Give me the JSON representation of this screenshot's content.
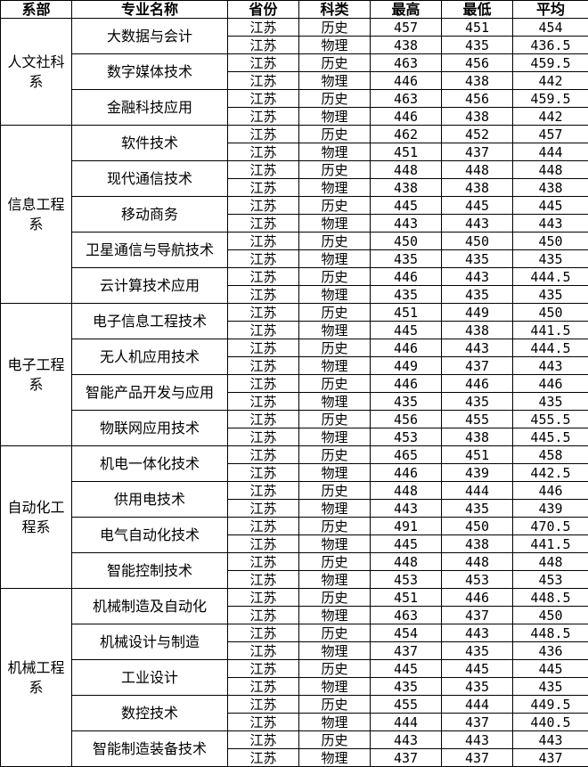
{
  "headers": [
    "系部",
    "专业名称",
    "省份",
    "科类",
    "最高",
    "最低",
    "平均"
  ],
  "departments": [
    {
      "name": "人文社科系",
      "majors": [
        {
          "name": "大数据与会计",
          "rows": [
            [
              "江苏",
              "历史",
              "457",
              "451",
              "454"
            ],
            [
              "江苏",
              "物理",
              "438",
              "435",
              "436.5"
            ]
          ]
        },
        {
          "name": "数字媒体技术",
          "rows": [
            [
              "江苏",
              "历史",
              "463",
              "456",
              "459.5"
            ],
            [
              "江苏",
              "物理",
              "446",
              "438",
              "442"
            ]
          ]
        },
        {
          "name": "金融科技应用",
          "rows": [
            [
              "江苏",
              "历史",
              "463",
              "456",
              "459.5"
            ],
            [
              "江苏",
              "物理",
              "446",
              "438",
              "442"
            ]
          ]
        }
      ]
    },
    {
      "name": "信息工程系",
      "majors": [
        {
          "name": "软件技术",
          "rows": [
            [
              "江苏",
              "历史",
              "462",
              "452",
              "457"
            ],
            [
              "江苏",
              "物理",
              "451",
              "437",
              "444"
            ]
          ]
        },
        {
          "name": "现代通信技术",
          "rows": [
            [
              "江苏",
              "历史",
              "448",
              "448",
              "448"
            ],
            [
              "江苏",
              "物理",
              "438",
              "438",
              "438"
            ]
          ]
        },
        {
          "name": "移动商务",
          "rows": [
            [
              "江苏",
              "历史",
              "445",
              "445",
              "445"
            ],
            [
              "江苏",
              "物理",
              "443",
              "443",
              "443"
            ]
          ]
        },
        {
          "name": "卫星通信与导航技术",
          "rows": [
            [
              "江苏",
              "历史",
              "450",
              "450",
              "450"
            ],
            [
              "江苏",
              "物理",
              "435",
              "435",
              "435"
            ]
          ]
        },
        {
          "name": "云计算技术应用",
          "rows": [
            [
              "江苏",
              "历史",
              "446",
              "443",
              "444.5"
            ],
            [
              "江苏",
              "物理",
              "435",
              "435",
              "435"
            ]
          ]
        }
      ]
    },
    {
      "name": "电子工程系",
      "majors": [
        {
          "name": "电子信息工程技术",
          "rows": [
            [
              "江苏",
              "历史",
              "451",
              "449",
              "450"
            ],
            [
              "江苏",
              "物理",
              "445",
              "438",
              "441.5"
            ]
          ]
        },
        {
          "name": "无人机应用技术",
          "rows": [
            [
              "江苏",
              "历史",
              "446",
              "443",
              "444.5"
            ],
            [
              "江苏",
              "物理",
              "449",
              "437",
              "443"
            ]
          ]
        },
        {
          "name": "智能产品开发与应用",
          "rows": [
            [
              "江苏",
              "历史",
              "446",
              "446",
              "446"
            ],
            [
              "江苏",
              "物理",
              "435",
              "435",
              "435"
            ]
          ]
        },
        {
          "name": "物联网应用技术",
          "rows": [
            [
              "江苏",
              "历史",
              "456",
              "455",
              "455.5"
            ],
            [
              "江苏",
              "物理",
              "453",
              "438",
              "445.5"
            ]
          ]
        }
      ]
    },
    {
      "name": "自动化工程系",
      "majors": [
        {
          "name": "机电一体化技术",
          "rows": [
            [
              "江苏",
              "历史",
              "465",
              "451",
              "458"
            ],
            [
              "江苏",
              "物理",
              "446",
              "439",
              "442.5"
            ]
          ]
        },
        {
          "name": "供用电技术",
          "rows": [
            [
              "江苏",
              "历史",
              "448",
              "444",
              "446"
            ],
            [
              "江苏",
              "物理",
              "443",
              "435",
              "439"
            ]
          ]
        },
        {
          "name": "电气自动化技术",
          "rows": [
            [
              "江苏",
              "历史",
              "491",
              "450",
              "470.5"
            ],
            [
              "江苏",
              "物理",
              "445",
              "438",
              "441.5"
            ]
          ]
        },
        {
          "name": "智能控制技术",
          "rows": [
            [
              "江苏",
              "历史",
              "448",
              "448",
              "448"
            ],
            [
              "江苏",
              "物理",
              "453",
              "453",
              "453"
            ]
          ]
        }
      ]
    },
    {
      "name": "机械工程系",
      "majors": [
        {
          "name": "机械制造及自动化",
          "rows": [
            [
              "江苏",
              "历史",
              "451",
              "446",
              "448.5"
            ],
            [
              "江苏",
              "物理",
              "463",
              "437",
              "450"
            ]
          ]
        },
        {
          "name": "机械设计与制造",
          "rows": [
            [
              "江苏",
              "历史",
              "454",
              "443",
              "448.5"
            ],
            [
              "江苏",
              "物理",
              "437",
              "435",
              "436"
            ]
          ]
        },
        {
          "name": "工业设计",
          "rows": [
            [
              "江苏",
              "历史",
              "445",
              "445",
              "445"
            ],
            [
              "江苏",
              "物理",
              "435",
              "435",
              "435"
            ]
          ]
        },
        {
          "name": "数控技术",
          "rows": [
            [
              "江苏",
              "历史",
              "455",
              "444",
              "449.5"
            ],
            [
              "江苏",
              "物理",
              "444",
              "437",
              "440.5"
            ]
          ]
        },
        {
          "name": "智能制造装备技术",
          "rows": [
            [
              "江苏",
              "历史",
              "443",
              "443",
              "443"
            ],
            [
              "江苏",
              "物理",
              "437",
              "437",
              "437"
            ]
          ]
        }
      ]
    }
  ]
}
